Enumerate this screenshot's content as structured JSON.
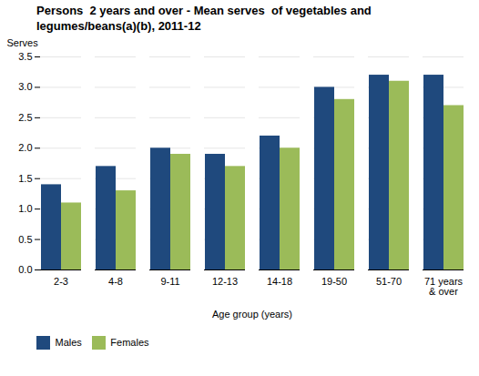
{
  "chart_data": {
    "type": "bar",
    "title": "Persons  2 years and over - Mean serves  of vegetables and\nlegumes/beans(a)(b), 2011-12",
    "y_label": "Serves",
    "x_label": "Age group (years)",
    "categories": [
      "2-3",
      "4-8",
      "9-11",
      "12-13",
      "14-18",
      "19-50",
      "51-70",
      "71 years\n& over"
    ],
    "series": [
      {
        "name": "Males",
        "color": "#1F497D",
        "values": [
          1.4,
          1.7,
          2.0,
          1.9,
          2.2,
          3.0,
          3.2,
          3.2
        ]
      },
      {
        "name": "Females",
        "color": "#9BBB59",
        "values": [
          1.1,
          1.3,
          1.9,
          1.7,
          2.0,
          2.8,
          3.1,
          2.7
        ]
      }
    ],
    "ylim": [
      0,
      3.5
    ],
    "yticks": [
      {
        "value": 0,
        "label": "0.0"
      },
      {
        "value": 0.5,
        "label": "0.5"
      },
      {
        "value": 1,
        "label": "1.0"
      },
      {
        "value": 1.5,
        "label": "1.5"
      },
      {
        "value": 2,
        "label": "2.0"
      },
      {
        "value": 2.5,
        "label": "2.5"
      },
      {
        "value": 3,
        "label": "3.0"
      },
      {
        "value": 3.5,
        "label": "3.5"
      }
    ],
    "grid": true,
    "legend": "bottom"
  }
}
